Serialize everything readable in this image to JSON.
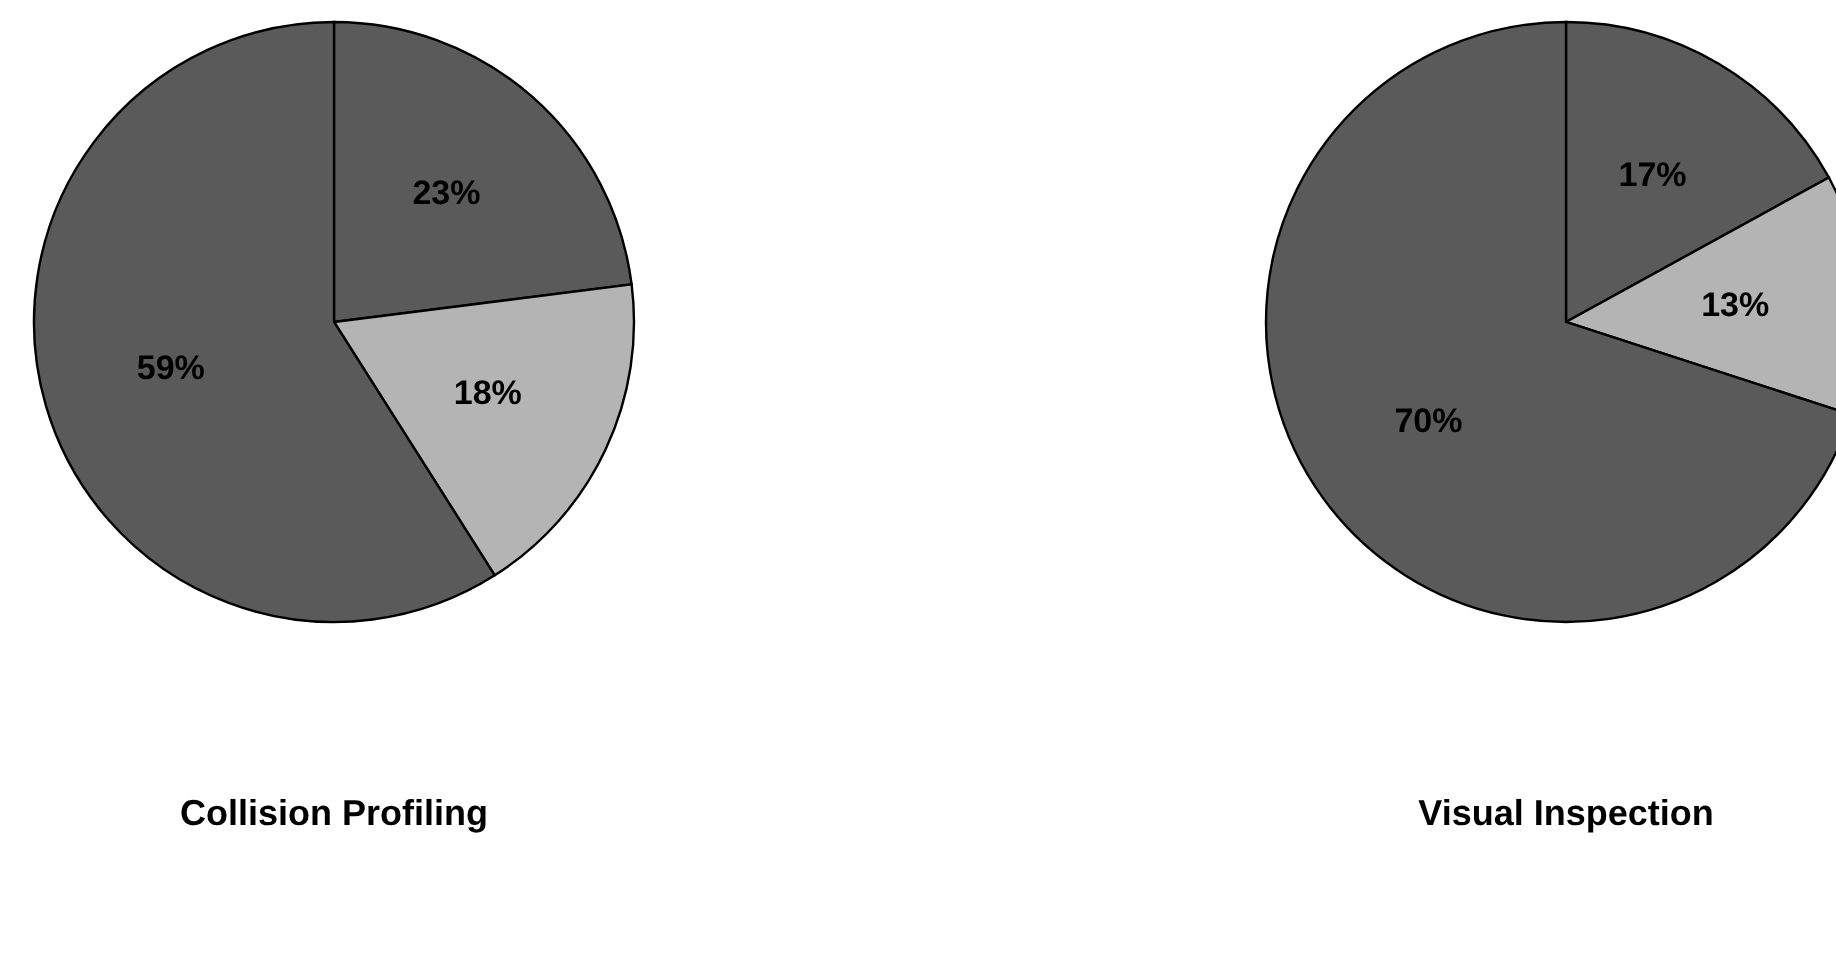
{
  "chart_data": [
    {
      "type": "pie",
      "title": "Collision Profiling",
      "categories": [
        null,
        null,
        null
      ],
      "values": [
        23,
        18,
        59
      ],
      "colors": [
        "#5a5a5a",
        "#b4b4b4",
        "#5a5a5a"
      ],
      "value_labels": [
        "23%",
        "18%",
        "59%"
      ]
    },
    {
      "type": "pie",
      "title": "Visual Inspection",
      "categories": [
        null,
        null,
        null
      ],
      "values": [
        17,
        13,
        70
      ],
      "colors": [
        "#5a5a5a",
        "#b4b4b4",
        "#5a5a5a"
      ],
      "value_labels": [
        "17%",
        "13%",
        "70%"
      ]
    }
  ]
}
